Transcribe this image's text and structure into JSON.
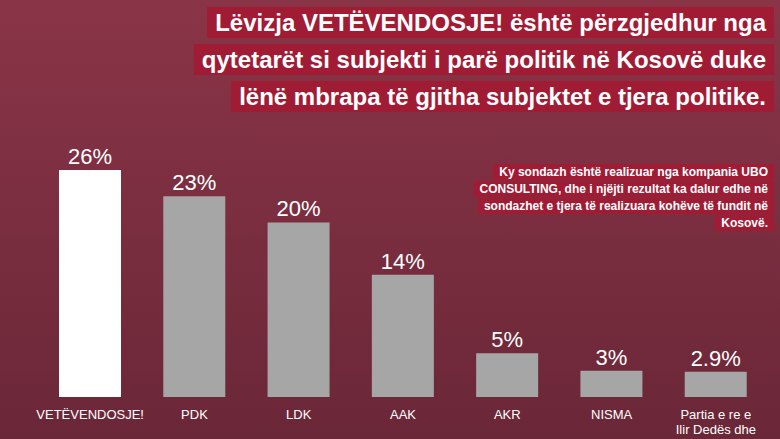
{
  "title": "Lëvizja VETËVENDOSJE! është përzgjedhur nga qytetarët si subjekti i parë politik në Kosovë duke lënë mbrapa të gjitha subjektet e tjera politike.",
  "subtitle": "Ky sondazh është realizuar nga kompania UBO CONSULTING, dhe i njëjti rezultat ka dalur edhe në sondazhet e tjera të realizuara kohëve të fundit në Kosovë.",
  "chart_data": {
    "type": "bar",
    "categories": [
      "VETËVENDOSJE!",
      "PDK",
      "LDK",
      "AAK",
      "AKR",
      "NISMA",
      "Partia e re e Ilir Dedës dhe"
    ],
    "values": [
      26,
      23,
      20,
      14,
      5,
      3,
      2.9
    ],
    "value_labels": [
      "26%",
      "23%",
      "20%",
      "14%",
      "5%",
      "3%",
      "2.9%"
    ],
    "colors": [
      "#ffffff",
      "#a6a6a6",
      "#a6a6a6",
      "#a6a6a6",
      "#a6a6a6",
      "#a6a6a6",
      "#a6a6a6"
    ],
    "ylim": [
      0,
      26
    ],
    "data_labels": true,
    "tick_labels": "x",
    "grid": false
  }
}
